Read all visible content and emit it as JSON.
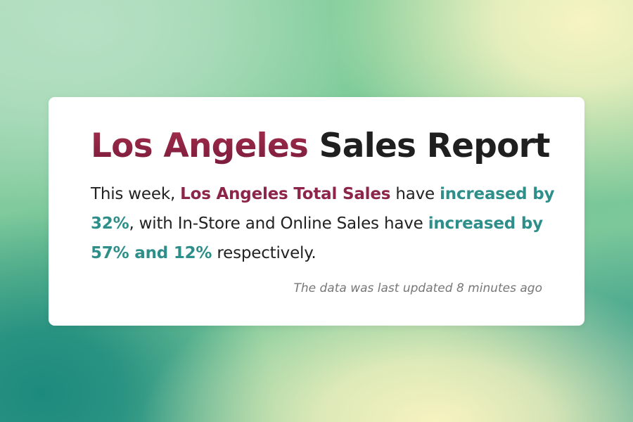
{
  "report": {
    "title_city": "Los Angeles",
    "title_rest": "Sales Report",
    "summary": {
      "part1": "This week, ",
      "city_total": "Los Angeles Total Sales",
      "part2": " have ",
      "total_increase": "increased by 32%",
      "part3": ", with In-Store and Online Sales have ",
      "channel_increase": "increased by 57% and 12%",
      "part4": " respectively."
    },
    "updated": "The data was last updated 8 minutes ago"
  },
  "colors": {
    "city_accent": "#8c2549",
    "increase_accent": "#2e8f8a",
    "card_background": "#ffffff"
  }
}
